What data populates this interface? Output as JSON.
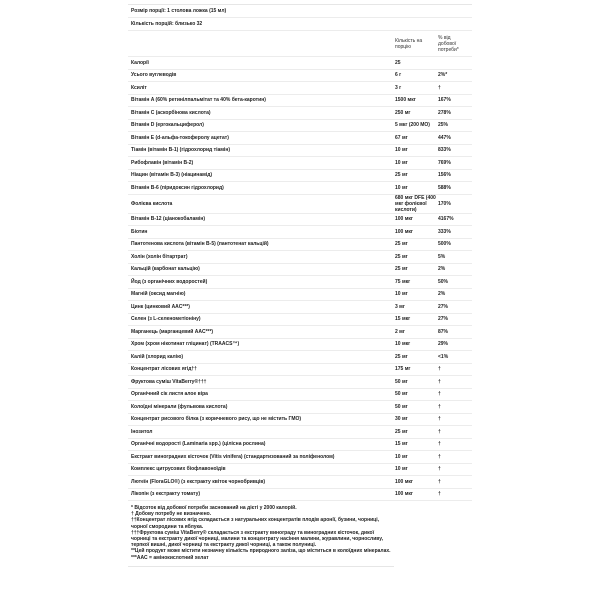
{
  "serving_size": "Розмір порції: 1 столова ложка (15 мл)",
  "servings": "Кількість порцій: близько 32",
  "header": {
    "amount": "Кількість на порцію",
    "dv": "% від добової потреби*"
  },
  "rows": [
    {
      "name": "Калорії",
      "amount": "25",
      "dv": ""
    },
    {
      "name": "Усього вуглеводів",
      "amount": "6 г",
      "dv": "2%*"
    },
    {
      "name": "Ксиліт",
      "amount": "3 г",
      "dv": "†"
    },
    {
      "name": "Вітамін A (60% ретинілпальмітат та 40% бета-каротин)",
      "amount": "1500 мкг",
      "dv": "167%"
    },
    {
      "name": "Вітамін C (аскорбінова кислота)",
      "amount": "250 мг",
      "dv": "278%"
    },
    {
      "name": "Вітамін D (ергокальциферол)",
      "amount": "5 мкг (200 МО)",
      "dv": "25%"
    },
    {
      "name": "Вітамін E (d-альфа-токоферолу ацетат)",
      "amount": "67 мг",
      "dv": "447%"
    },
    {
      "name": "Тіамін (вітамін B-1) (гідрохлорид тіамін)",
      "amount": "10 мг",
      "dv": "833%"
    },
    {
      "name": "Рибофлавін (вітамін B-2)",
      "amount": "10 мг",
      "dv": "769%"
    },
    {
      "name": "Ніацин (вітамін B-3) (ніацинамід)",
      "amount": "25 мг",
      "dv": "156%"
    },
    {
      "name": "Вітамін B-6 (піридоксин гідрохлорид)",
      "amount": "10 мг",
      "dv": "588%"
    },
    {
      "name": "Фолієва кислота",
      "amount": "680 мкг DFE (400 мкг фолієвої кислоти)",
      "dv": "170%"
    },
    {
      "name": "Вітамін B-12 (ціанокобаламін)",
      "amount": "100 мкг",
      "dv": "4167%"
    },
    {
      "name": "Біотин",
      "amount": "100 мкг",
      "dv": "333%"
    },
    {
      "name": "Пантотенова кислота (вітамін B-5) (пантотенат кальцій)",
      "amount": "25 мг",
      "dv": "500%"
    },
    {
      "name": "Холін (холін бітартрат)",
      "amount": "25 мг",
      "dv": "5%"
    },
    {
      "name": "Кальцій (карбонат кальцію)",
      "amount": "25 мг",
      "dv": "2%"
    },
    {
      "name": "Йод (з органічних водоростей)",
      "amount": "75 мкг",
      "dv": "50%"
    },
    {
      "name": "Магній (оксид магнію)",
      "amount": "10 мг",
      "dv": "2%"
    },
    {
      "name": "Цинк (цинковий AAC***)",
      "amount": "3 мг",
      "dv": "27%"
    },
    {
      "name": "Селен (з L-селенометіоніну)",
      "amount": "15 мкг",
      "dv": "27%"
    },
    {
      "name": "Марганець (марганцевий AAC***)",
      "amount": "2 мг",
      "dv": "87%"
    },
    {
      "name": "Хром (хром нікотинат гліцинат) (TRAACS™)",
      "amount": "10 мкг",
      "dv": "29%"
    },
    {
      "name": "Калій (хлорид калію)",
      "amount": "25 мг",
      "dv": "<1%"
    },
    {
      "name": "Концентрат лісових ягід††",
      "amount": "175 мг",
      "dv": "†"
    },
    {
      "name": "Фруктова суміш VitaBerry®†††",
      "amount": "50 мг",
      "dv": "†"
    },
    {
      "name": "Органічний сік листя алое віра",
      "amount": "50 мг",
      "dv": "†"
    },
    {
      "name": "Колоїдні мінерали (фульвова кислота)",
      "amount": "50 мг",
      "dv": "†"
    },
    {
      "name": "Концентрат рисового білка (з коричневого рису, що не містить ГМО)",
      "amount": "30 мг",
      "dv": "†"
    },
    {
      "name": "Інозитол",
      "amount": "25 мг",
      "dv": "†"
    },
    {
      "name": "Органічні водорості (Laminaria spp.) (цілісна рослина)",
      "amount": "15 мг",
      "dv": "†"
    },
    {
      "name": "Екстракт виноградних кісточок (Vitis vinifera) (стандартизований за поліфенолом)",
      "amount": "10 мг",
      "dv": "†"
    },
    {
      "name": "Комплекс цитрусових біофлавоноїдів",
      "amount": "10 мг",
      "dv": "†"
    },
    {
      "name": "Лютеїн (FloraGLO®) (з екстракту квіток чорнобривців)",
      "amount": "100 мкг",
      "dv": "†"
    },
    {
      "name": "Лікопін (з екстракту томату)",
      "amount": "100 мкг",
      "dv": "†"
    }
  ],
  "footnotes": [
    "* Відсоток від добової потреби заснований на дієті у 2000 калорій.",
    "† Добову потребу не визначено.",
    "††Концентрат лісових ягід складається з натуральних концентратів плодів аронії, бузини, чорниці, чорної смородини та яблука.",
    "†††Фруктова суміш VitaBerry® складається з екстракту винограду та виноградних кісточок, дикої чорниці та екстракту дикої чорниці, малини та концентрату насіння малини, журавлини, чорносливу, терпкої вишні, дикої чорниці та екстракту дикої чорниці, а також полуниці.",
    "**Цей продукт може містити незначну кількість природного заліза, що міститься в колоїдних мінералах.",
    "***AAC = амінокислотний хелат"
  ]
}
